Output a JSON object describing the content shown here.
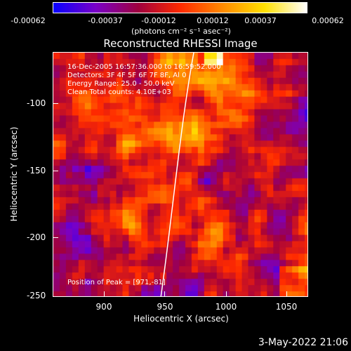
{
  "colorbar": {
    "tick_labels": [
      "-0.00062",
      "-0.00037",
      "-0.00012",
      "0.00012",
      "0.00037",
      "0.00062"
    ],
    "unit_label": "(photons cm⁻² s⁻¹ asec⁻²)",
    "colors": [
      "#0b00ff",
      "#7a00c8",
      "#a00040",
      "#ff2a00",
      "#ff8a00",
      "#ffe100",
      "#ffffff"
    ]
  },
  "title": "Reconstructed RHESSI Image",
  "info": {
    "time": "16-Dec-2005 16:57:36.000 to 16:59:52.000",
    "detectors": "Detectors: 3F 4F 5F 6F 7F 8F, Al 0",
    "energy": "Energy Range: 25.0 - 50.0 keV",
    "clean": "Clean     Total counts: 4.10E+03",
    "peak": "Position of Peak = [971,-81]"
  },
  "axes": {
    "x_label": "Heliocentric X (arcsec)",
    "y_label": "Heliocentric Y (arcsec)",
    "x_ticks": [
      "900",
      "950",
      "1000",
      "1050"
    ],
    "y_ticks": [
      "-100",
      "-150",
      "-200",
      "-250"
    ],
    "xlim": [
      862,
      1055
    ],
    "ylim": [
      -250,
      -68
    ]
  },
  "footer": {
    "date": "3-May-2022 21:06"
  }
}
